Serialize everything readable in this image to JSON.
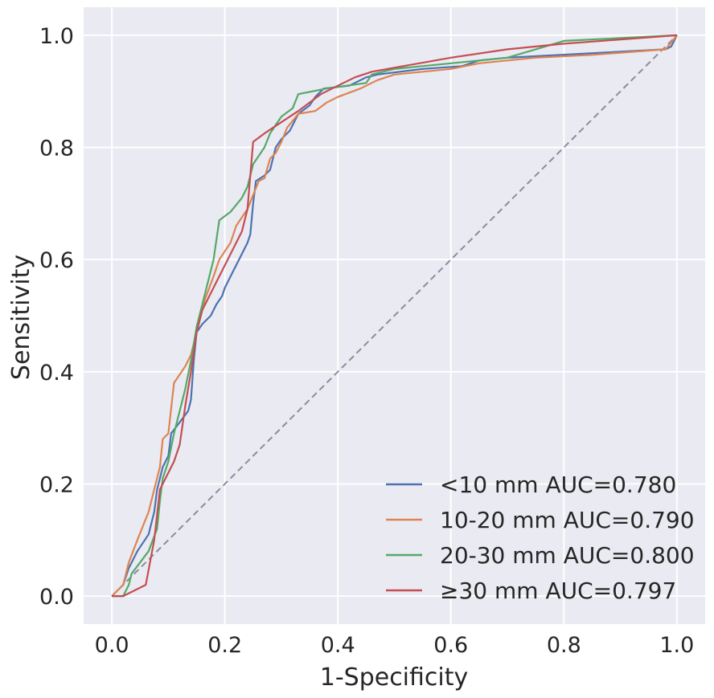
{
  "chart_data": {
    "type": "line",
    "xlabel": "1-Specificity",
    "ylabel": "Sensitivity",
    "xlim": [
      -0.05,
      1.05
    ],
    "ylim": [
      -0.05,
      1.05
    ],
    "x_ticks": [
      0.0,
      0.2,
      0.4,
      0.6,
      0.8,
      1.0
    ],
    "y_ticks": [
      0.0,
      0.2,
      0.4,
      0.6,
      0.8,
      1.0
    ],
    "x_tick_labels": [
      "0.0",
      "0.2",
      "0.4",
      "0.6",
      "0.8",
      "1.0"
    ],
    "y_tick_labels": [
      "0.0",
      "0.2",
      "0.4",
      "0.6",
      "0.8",
      "1.0"
    ],
    "grid": true,
    "background": "#EAEAF2",
    "legend_position": "lower-right",
    "reference_line": {
      "points": [
        [
          0,
          0
        ],
        [
          1,
          1
        ]
      ],
      "color": "#8C8CA0",
      "style": "dashed"
    },
    "series": [
      {
        "name": "<10 mm AUC=0.780",
        "color": "#4C72B0",
        "points": [
          [
            0,
            0
          ],
          [
            0.02,
            0.02
          ],
          [
            0.03,
            0.05
          ],
          [
            0.045,
            0.08
          ],
          [
            0.065,
            0.11
          ],
          [
            0.075,
            0.15
          ],
          [
            0.08,
            0.19
          ],
          [
            0.09,
            0.23
          ],
          [
            0.1,
            0.25
          ],
          [
            0.105,
            0.29
          ],
          [
            0.12,
            0.31
          ],
          [
            0.135,
            0.33
          ],
          [
            0.14,
            0.35
          ],
          [
            0.145,
            0.42
          ],
          [
            0.15,
            0.47
          ],
          [
            0.16,
            0.485
          ],
          [
            0.175,
            0.5
          ],
          [
            0.185,
            0.52
          ],
          [
            0.195,
            0.535
          ],
          [
            0.2,
            0.55
          ],
          [
            0.21,
            0.57
          ],
          [
            0.22,
            0.59
          ],
          [
            0.23,
            0.61
          ],
          [
            0.24,
            0.63
          ],
          [
            0.245,
            0.645
          ],
          [
            0.25,
            0.7
          ],
          [
            0.255,
            0.74
          ],
          [
            0.27,
            0.75
          ],
          [
            0.28,
            0.76
          ],
          [
            0.29,
            0.8
          ],
          [
            0.3,
            0.815
          ],
          [
            0.315,
            0.83
          ],
          [
            0.33,
            0.86
          ],
          [
            0.35,
            0.875
          ],
          [
            0.36,
            0.89
          ],
          [
            0.375,
            0.905
          ],
          [
            0.42,
            0.91
          ],
          [
            0.45,
            0.925
          ],
          [
            0.47,
            0.93
          ],
          [
            0.55,
            0.94
          ],
          [
            0.62,
            0.945
          ],
          [
            0.65,
            0.955
          ],
          [
            0.7,
            0.96
          ],
          [
            0.98,
            0.975
          ],
          [
            0.99,
            0.98
          ],
          [
            1,
            1
          ]
        ]
      },
      {
        "name": "10-20 mm AUC=0.790",
        "color": "#DD8452",
        "points": [
          [
            0,
            0
          ],
          [
            0.02,
            0.02
          ],
          [
            0.03,
            0.06
          ],
          [
            0.045,
            0.1
          ],
          [
            0.055,
            0.125
          ],
          [
            0.065,
            0.15
          ],
          [
            0.075,
            0.19
          ],
          [
            0.085,
            0.23
          ],
          [
            0.09,
            0.28
          ],
          [
            0.1,
            0.29
          ],
          [
            0.11,
            0.38
          ],
          [
            0.12,
            0.395
          ],
          [
            0.13,
            0.41
          ],
          [
            0.14,
            0.43
          ],
          [
            0.15,
            0.47
          ],
          [
            0.165,
            0.53
          ],
          [
            0.18,
            0.57
          ],
          [
            0.19,
            0.6
          ],
          [
            0.2,
            0.615
          ],
          [
            0.21,
            0.63
          ],
          [
            0.22,
            0.66
          ],
          [
            0.24,
            0.69
          ],
          [
            0.26,
            0.74
          ],
          [
            0.27,
            0.745
          ],
          [
            0.28,
            0.78
          ],
          [
            0.29,
            0.79
          ],
          [
            0.3,
            0.81
          ],
          [
            0.31,
            0.835
          ],
          [
            0.33,
            0.86
          ],
          [
            0.36,
            0.865
          ],
          [
            0.38,
            0.88
          ],
          [
            0.4,
            0.89
          ],
          [
            0.44,
            0.905
          ],
          [
            0.47,
            0.92
          ],
          [
            0.5,
            0.93
          ],
          [
            0.55,
            0.935
          ],
          [
            0.6,
            0.94
          ],
          [
            0.65,
            0.95
          ],
          [
            0.75,
            0.96
          ],
          [
            0.85,
            0.965
          ],
          [
            0.98,
            0.975
          ],
          [
            1,
            1
          ]
        ]
      },
      {
        "name": "20-30 mm AUC=0.800",
        "color": "#55A868",
        "points": [
          [
            0,
            0
          ],
          [
            0.02,
            0.0
          ],
          [
            0.03,
            0.02
          ],
          [
            0.035,
            0.04
          ],
          [
            0.05,
            0.06
          ],
          [
            0.065,
            0.08
          ],
          [
            0.08,
            0.12
          ],
          [
            0.085,
            0.17
          ],
          [
            0.09,
            0.21
          ],
          [
            0.1,
            0.24
          ],
          [
            0.11,
            0.29
          ],
          [
            0.12,
            0.33
          ],
          [
            0.13,
            0.37
          ],
          [
            0.14,
            0.42
          ],
          [
            0.15,
            0.48
          ],
          [
            0.16,
            0.52
          ],
          [
            0.17,
            0.56
          ],
          [
            0.18,
            0.6
          ],
          [
            0.19,
            0.67
          ],
          [
            0.21,
            0.685
          ],
          [
            0.23,
            0.71
          ],
          [
            0.24,
            0.73
          ],
          [
            0.25,
            0.77
          ],
          [
            0.27,
            0.8
          ],
          [
            0.28,
            0.825
          ],
          [
            0.29,
            0.84
          ],
          [
            0.3,
            0.855
          ],
          [
            0.32,
            0.87
          ],
          [
            0.33,
            0.895
          ],
          [
            0.38,
            0.905
          ],
          [
            0.45,
            0.915
          ],
          [
            0.46,
            0.93
          ],
          [
            0.5,
            0.94
          ],
          [
            0.6,
            0.95
          ],
          [
            0.7,
            0.96
          ],
          [
            0.75,
            0.975
          ],
          [
            0.8,
            0.99
          ],
          [
            1,
            1
          ]
        ]
      },
      {
        "name": "≥30 mm AUC=0.797",
        "color": "#C44E52",
        "points": [
          [
            0,
            0
          ],
          [
            0.02,
            0.0
          ],
          [
            0.06,
            0.02
          ],
          [
            0.075,
            0.1
          ],
          [
            0.085,
            0.19
          ],
          [
            0.1,
            0.22
          ],
          [
            0.11,
            0.24
          ],
          [
            0.12,
            0.27
          ],
          [
            0.13,
            0.34
          ],
          [
            0.14,
            0.4
          ],
          [
            0.15,
            0.47
          ],
          [
            0.16,
            0.51
          ],
          [
            0.18,
            0.55
          ],
          [
            0.21,
            0.61
          ],
          [
            0.23,
            0.65
          ],
          [
            0.24,
            0.69
          ],
          [
            0.25,
            0.81
          ],
          [
            0.27,
            0.825
          ],
          [
            0.3,
            0.845
          ],
          [
            0.33,
            0.865
          ],
          [
            0.37,
            0.895
          ],
          [
            0.4,
            0.91
          ],
          [
            0.43,
            0.925
          ],
          [
            0.46,
            0.935
          ],
          [
            0.6,
            0.96
          ],
          [
            0.7,
            0.975
          ],
          [
            0.8,
            0.985
          ],
          [
            1,
            1
          ]
        ]
      }
    ]
  }
}
